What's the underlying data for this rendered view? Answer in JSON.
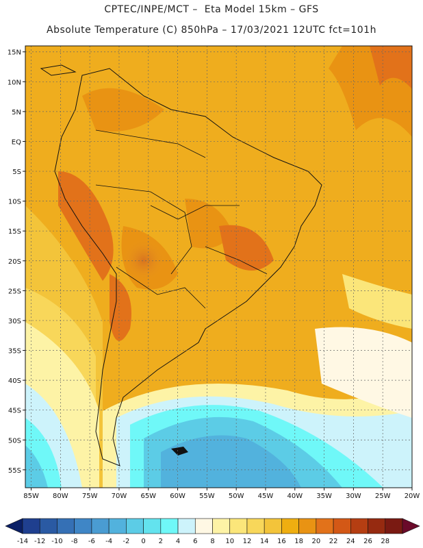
{
  "header": {
    "line1": "CPTEC/INPE/MCT –  Eta Model 15km – GFS",
    "line2": "Absolute Temperature (C) 850hPa – 17/03/2021 12UTC fct=101h"
  },
  "axes": {
    "lat_labels": [
      "15N",
      "10N",
      "5N",
      "EQ",
      "5S",
      "10S",
      "15S",
      "20S",
      "25S",
      "30S",
      "35S",
      "40S",
      "45S",
      "50S",
      "55S"
    ],
    "lon_labels": [
      "85W",
      "80W",
      "75W",
      "70W",
      "65W",
      "60W",
      "55W",
      "50W",
      "45W",
      "40W",
      "35W",
      "30W",
      "25W",
      "20W"
    ],
    "lat_range": [
      -58,
      16
    ],
    "lon_range": [
      -86,
      -20
    ],
    "grid": true
  },
  "colorbar": {
    "ticks": [
      "-14",
      "-12",
      "-10",
      "-8",
      "-6",
      "-4",
      "-2",
      "0",
      "2",
      "4",
      "6",
      "8",
      "10",
      "12",
      "14",
      "16",
      "18",
      "20",
      "22",
      "24",
      "26",
      "28"
    ],
    "colors": [
      "#1f3f8f",
      "#2a5aa3",
      "#3570b5",
      "#3f86c6",
      "#4a9cd2",
      "#52b2dd",
      "#5ccce6",
      "#63e3ee",
      "#6ff8f8",
      "#cdf3fb",
      "#fff8e4",
      "#fdf3a6",
      "#fbe67a",
      "#f8d75a",
      "#f3c43a",
      "#efae10",
      "#e99313",
      "#e2721a",
      "#d35816",
      "#b53e12",
      "#962a10",
      "#7a1a12"
    ],
    "under_color": "#0a1f66",
    "over_color": "#6a0a2a"
  }
}
